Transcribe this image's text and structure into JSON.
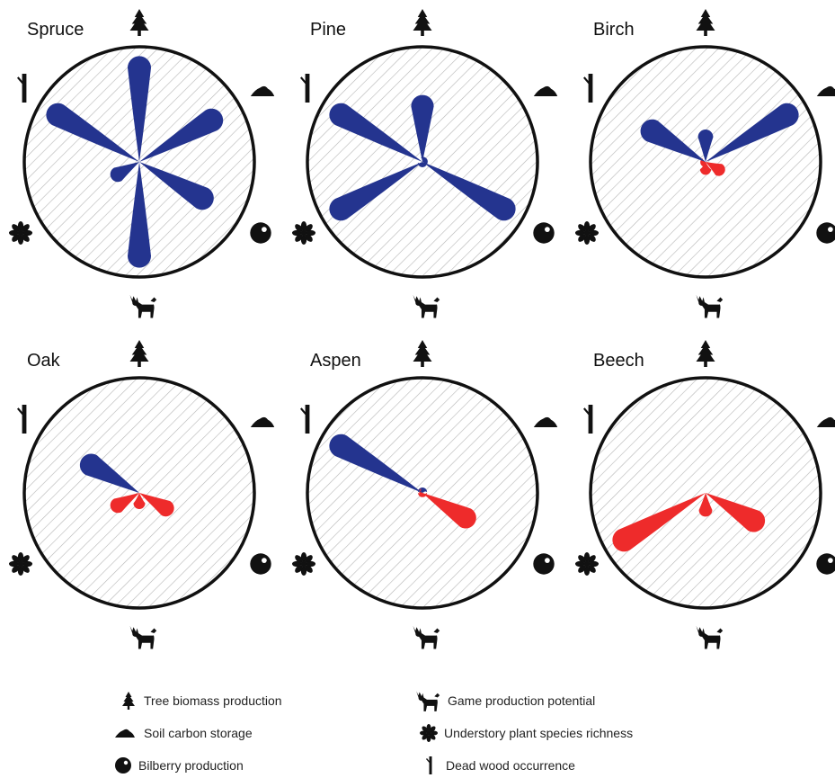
{
  "colors": {
    "positive": "#24348f",
    "negative": "#ee2b2b",
    "ring": "#111111",
    "hatch": "#b8b8b8"
  },
  "icons": {
    "tree": "tree-icon",
    "soil": "soil-mound-icon",
    "bilberry": "bilberry-icon",
    "moose": "moose-icon",
    "flower": "flower-icon",
    "deadwood": "dead-wood-icon"
  },
  "legend": {
    "tree": "Tree biomass production",
    "soil": "Soil carbon storage",
    "bilberry": "Bilberry production",
    "game": "Game production potential",
    "understory": "Understory plant species richness",
    "deadwood": "Dead wood occurrence"
  },
  "chart_data": [
    {
      "type": "radial-petal",
      "title": "Spruce",
      "axes": [
        "Tree biomass production",
        "Soil carbon storage",
        "Bilberry production",
        "Game production potential",
        "Understory plant species richness",
        "Dead wood occurrence"
      ],
      "values": [
        0.98,
        0.88,
        0.78,
        0.98,
        0.3,
        0.98
      ]
    },
    {
      "type": "radial-petal",
      "title": "Pine",
      "axes": [
        "Tree biomass production",
        "Soil carbon storage",
        "Bilberry production",
        "Game production potential",
        "Understory plant species richness",
        "Dead wood occurrence"
      ],
      "values": [
        0.62,
        0.05,
        0.98,
        0.05,
        0.98,
        0.98
      ]
    },
    {
      "type": "radial-petal",
      "title": "Birch",
      "axes": [
        "Tree biomass production",
        "Soil carbon storage",
        "Bilberry production",
        "Game production potential",
        "Understory plant species richness",
        "Dead wood occurrence"
      ],
      "values": [
        0.3,
        0.98,
        -0.2,
        -0.12,
        -0.05,
        0.68
      ]
    },
    {
      "type": "radial-petal",
      "title": "Oak",
      "axes": [
        "Tree biomass production",
        "Soil carbon storage",
        "Bilberry production",
        "Game production potential",
        "Understory plant species richness",
        "Dead wood occurrence"
      ],
      "values": [
        0.0,
        0.0,
        -0.36,
        -0.15,
        -0.3,
        0.62
      ]
    },
    {
      "type": "radial-petal",
      "title": "Aspen",
      "axes": [
        "Tree biomass production",
        "Soil carbon storage",
        "Bilberry production",
        "Game production potential",
        "Understory plant species richness",
        "Dead wood occurrence"
      ],
      "values": [
        0.05,
        0.0,
        -0.56,
        -0.04,
        -0.03,
        0.98
      ]
    },
    {
      "type": "radial-petal",
      "title": "Beech",
      "axes": [
        "Tree biomass production",
        "Soil carbon storage",
        "Bilberry production",
        "Game production potential",
        "Understory plant species richness",
        "Dead wood occurrence"
      ],
      "values": [
        0.0,
        0.0,
        -0.62,
        -0.22,
        -0.98,
        0.0
      ]
    }
  ]
}
